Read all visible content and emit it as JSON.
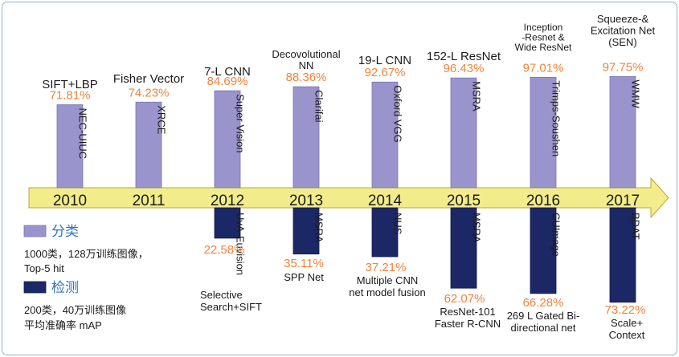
{
  "chart_data": {
    "type": "bar",
    "colors": {
      "classification": "#9a94cc",
      "detection": "#1c2866",
      "accuracy": "#f0843c",
      "axis": "#f3ec8a",
      "axis_edge": "#b7a830"
    },
    "years": [
      "2010",
      "2011",
      "2012",
      "2013",
      "2014",
      "2015",
      "2016",
      "2017"
    ],
    "classification": [
      {
        "year": "2010",
        "method": "SIFT+LBP",
        "value": 71.81,
        "label": "71.81%",
        "team": "NEC-UIUC"
      },
      {
        "year": "2011",
        "method": "Fisher Vector",
        "value": 74.23,
        "label": "74.23%",
        "team": "XRCE"
      },
      {
        "year": "2012",
        "method": "7-L CNN",
        "value": 84.69,
        "label": "84.69%",
        "team": "Super Vision"
      },
      {
        "year": "2013",
        "method": "Decovolutional NN",
        "value": 88.36,
        "label": "88.36%",
        "team": "Clarifai"
      },
      {
        "year": "2014",
        "method": "19-L CNN",
        "value": 92.67,
        "label": "92.67%",
        "team": "Oxford VGG"
      },
      {
        "year": "2015",
        "method": "152-L ResNet",
        "value": 96.43,
        "label": "96.43%",
        "team": "MSRA"
      },
      {
        "year": "2016",
        "method": "Inception -Resnet & Wide ResNet",
        "value": 97.01,
        "label": "97.01%",
        "team": "Trimps-Soushen"
      },
      {
        "year": "2017",
        "method": "Squeeze-& Excitation Net (SEN)",
        "value": 97.75,
        "label": "97.75%",
        "team": "WMW"
      }
    ],
    "detection": [
      {
        "year": "2012",
        "method": "Selective Search+SIFT",
        "value": 22.58,
        "label": "22.58%",
        "team": "UvA-Euvision"
      },
      {
        "year": "2013",
        "method": "SPP Net",
        "value": 35.11,
        "label": "35.11%",
        "team": "MSRA"
      },
      {
        "year": "2014",
        "method": "Multiple CNN net model fusion",
        "value": 37.21,
        "label": "37.21%",
        "team": "NUS"
      },
      {
        "year": "2015",
        "method": "ResNet-101 Faster R-CNN",
        "value": 62.07,
        "label": "62.07%",
        "team": "MSRA"
      },
      {
        "year": "2016",
        "method": "269 L Gated Bi-directional net",
        "value": 66.28,
        "label": "66.28%",
        "team": "CUImage"
      },
      {
        "year": "2017",
        "method": "Scale+ Context",
        "value": 73.22,
        "label": "73.22%",
        "team": "BDAT"
      }
    ],
    "legend": {
      "classification_title": "分类",
      "classification_desc": [
        "1000类，128万训练图像，",
        "Top-5 hit"
      ],
      "detection_title": "检测",
      "detection_desc": [
        "200类，40万训练图像",
        "平均准确率 mAP"
      ]
    }
  }
}
